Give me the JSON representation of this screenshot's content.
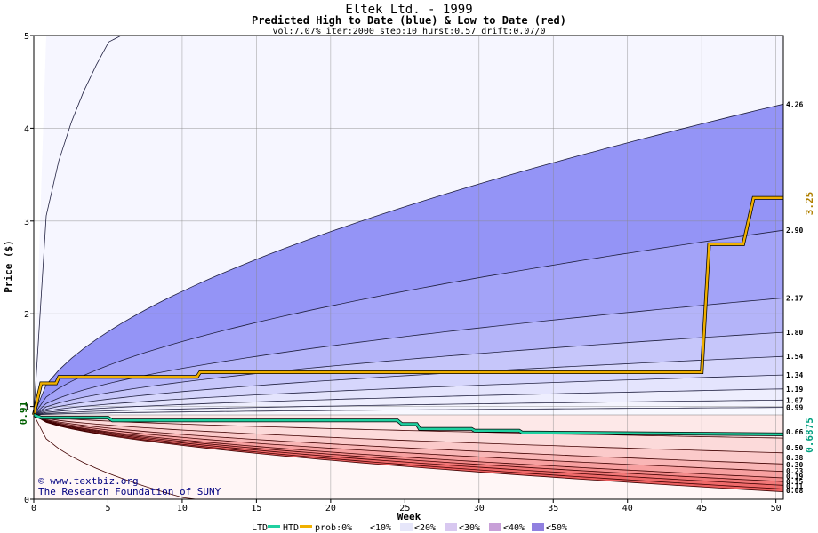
{
  "chart_data": {
    "type": "area",
    "title": "Eltek Ltd. - 1999",
    "subtitle": "Predicted High to Date (blue) &  Low to Date (red)",
    "params": "vol:7.07% iter:2000 step:10 hurst:0.57 drift:0.07/0",
    "xlabel": "Week",
    "ylabel": "Price ($)",
    "xlim": [
      0,
      50.5
    ],
    "ylim": [
      0,
      5
    ],
    "x_ticks": [
      0,
      5,
      10,
      15,
      20,
      25,
      30,
      35,
      40,
      45,
      50
    ],
    "y_ticks": [
      0,
      1,
      2,
      3,
      4,
      5
    ],
    "start_value": 0.91,
    "start_label": "0.91",
    "high_percentile_ends": [
      0.99,
      1.07,
      1.19,
      1.34,
      1.54,
      1.8,
      2.17,
      2.9,
      4.26
    ],
    "high_labels": [
      "0.99",
      "1.07",
      "1.19",
      "1.34",
      "1.54",
      "1.80",
      "2.17",
      "2.90",
      "4.26"
    ],
    "low_percentile_ends": [
      0.66,
      0.5,
      0.38,
      0.3,
      0.23,
      0.19,
      0.15,
      0.11,
      0.08
    ],
    "low_labels": [
      "0.66",
      "0.50",
      "0.38",
      "0.30",
      "0.23",
      "0.19",
      "0.15",
      "0.11",
      "0.08"
    ],
    "htd_series": {
      "name": "HTD",
      "color": "#f0b000",
      "points": [
        [
          0,
          0.91
        ],
        [
          0.5,
          1.25
        ],
        [
          1.5,
          1.25
        ],
        [
          1.7,
          1.32
        ],
        [
          5,
          1.32
        ],
        [
          11,
          1.32
        ],
        [
          11.2,
          1.37
        ],
        [
          45,
          1.37
        ],
        [
          45.5,
          2.75
        ],
        [
          47.8,
          2.75
        ],
        [
          48.5,
          3.25
        ],
        [
          50.5,
          3.25
        ]
      ],
      "end_value": 3.25,
      "end_label": "3.25"
    },
    "ltd_series": {
      "name": "LTD",
      "color": "#20d0a0",
      "points": [
        [
          0,
          0.91
        ],
        [
          0.5,
          0.88
        ],
        [
          5,
          0.88
        ],
        [
          5.3,
          0.85
        ],
        [
          24.5,
          0.85
        ],
        [
          24.8,
          0.81
        ],
        [
          25.8,
          0.81
        ],
        [
          26,
          0.76
        ],
        [
          29.5,
          0.76
        ],
        [
          29.7,
          0.74
        ],
        [
          32.7,
          0.74
        ],
        [
          32.9,
          0.72
        ],
        [
          50.5,
          0.7
        ]
      ],
      "end_value": 0.6875,
      "end_label": "0.6875"
    },
    "colors": {
      "blue_line": "#202040",
      "red_line": "#400000",
      "grid": "#888888"
    }
  },
  "legend": {
    "ltd": "LTD",
    "htd": "HTD",
    "prob": "prob:0%",
    "bands": [
      "<10%",
      "<20%",
      "<30%",
      "<40%",
      "<50%"
    ]
  },
  "watermark": {
    "line1": "© www.textbiz.org",
    "line2": "The Research Foundation of SUNY"
  }
}
